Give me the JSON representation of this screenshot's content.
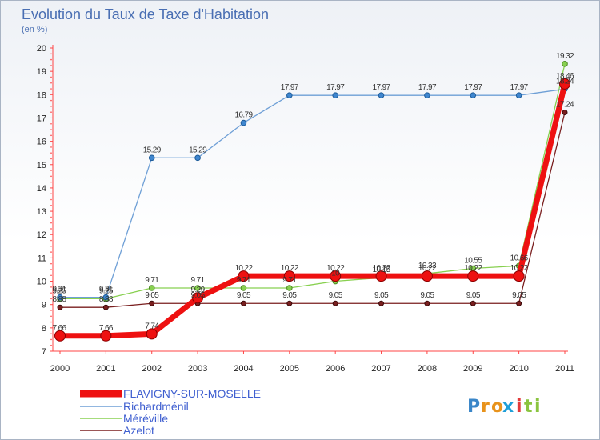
{
  "chart_data": {
    "type": "line",
    "title": "Evolution du Taux de Taxe d'Habitation",
    "subtitle": "(en %)",
    "xlabel": "",
    "ylabel": "",
    "x": [
      "2000",
      "2001",
      "2002",
      "2003",
      "2004",
      "2005",
      "2006",
      "2007",
      "2008",
      "2009",
      "2010",
      "2011"
    ],
    "ylim": [
      7,
      20
    ],
    "yticks": [
      7,
      8,
      9,
      10,
      11,
      12,
      13,
      14,
      15,
      16,
      17,
      18,
      19,
      20
    ],
    "ytick_labels": [
      "7",
      "8",
      "9",
      "10",
      "11",
      "12",
      "13",
      "14",
      "15",
      "16",
      "17",
      "18",
      "19",
      "20"
    ],
    "grid": false,
    "legend_position": "bottom-left",
    "series": [
      {
        "name": "Azelot",
        "color": "#7a1f1f",
        "values": [
          8.88,
          8.88,
          9.05,
          9.05,
          9.05,
          9.05,
          9.05,
          9.05,
          9.05,
          9.05,
          9.05,
          17.24
        ],
        "labels": [
          "8.88",
          "8.88",
          "9.05",
          "9.05",
          "9.05",
          "9.05",
          "9.05",
          "9.05",
          "9.05",
          "9.05",
          "9.05",
          "17.24"
        ]
      },
      {
        "name": "Méréville",
        "color": "#88d050",
        "values": [
          9.25,
          9.25,
          9.71,
          9.71,
          9.71,
          9.71,
          10,
          10.15,
          10.33,
          10.55,
          10.66,
          19.32
        ],
        "labels": [
          "9.25",
          "9.25",
          "9.71",
          "9.71",
          "9.71",
          "9.71",
          "10",
          "10.15",
          "10.33",
          "10.55",
          "10.66",
          "19.32"
        ]
      },
      {
        "name": "Richardménil",
        "color": "#6e9fd6",
        "values": [
          9.31,
          9.31,
          15.29,
          15.29,
          16.79,
          17.97,
          17.97,
          17.97,
          17.97,
          17.97,
          17.97,
          18.24
        ],
        "labels": [
          "9.31",
          "9.31",
          "15.29",
          "15.29",
          "16.79",
          "17.97",
          "17.97",
          "17.97",
          "17.97",
          "17.97",
          "17.97",
          "18.24"
        ]
      },
      {
        "name": "FLAVIGNY-SUR-MOSELLE",
        "color": "#ee1111",
        "values": [
          7.66,
          7.66,
          7.74,
          9.29,
          10.22,
          10.22,
          10.22,
          10.22,
          10.22,
          10.22,
          10.22,
          18.46
        ],
        "labels": [
          "7.66",
          "7.66",
          "7.74",
          "9.29",
          "10.22",
          "10.22",
          "10.22",
          "10.22",
          "10.22",
          "10.22",
          "10.22",
          "18.46"
        ]
      }
    ],
    "legend_order": [
      "FLAVIGNY-SUR-MOSELLE",
      "Richardménil",
      "Méréville",
      "Azelot"
    ]
  },
  "logo": {
    "letters": [
      "P",
      "r",
      "o",
      "x",
      "i",
      "t",
      "i"
    ],
    "colors": [
      "#3a86c8",
      "#e8931c",
      "#e8931c",
      "#1f9fd8",
      "#e23a3a",
      "#8ac43f",
      "#8ac43f"
    ]
  }
}
